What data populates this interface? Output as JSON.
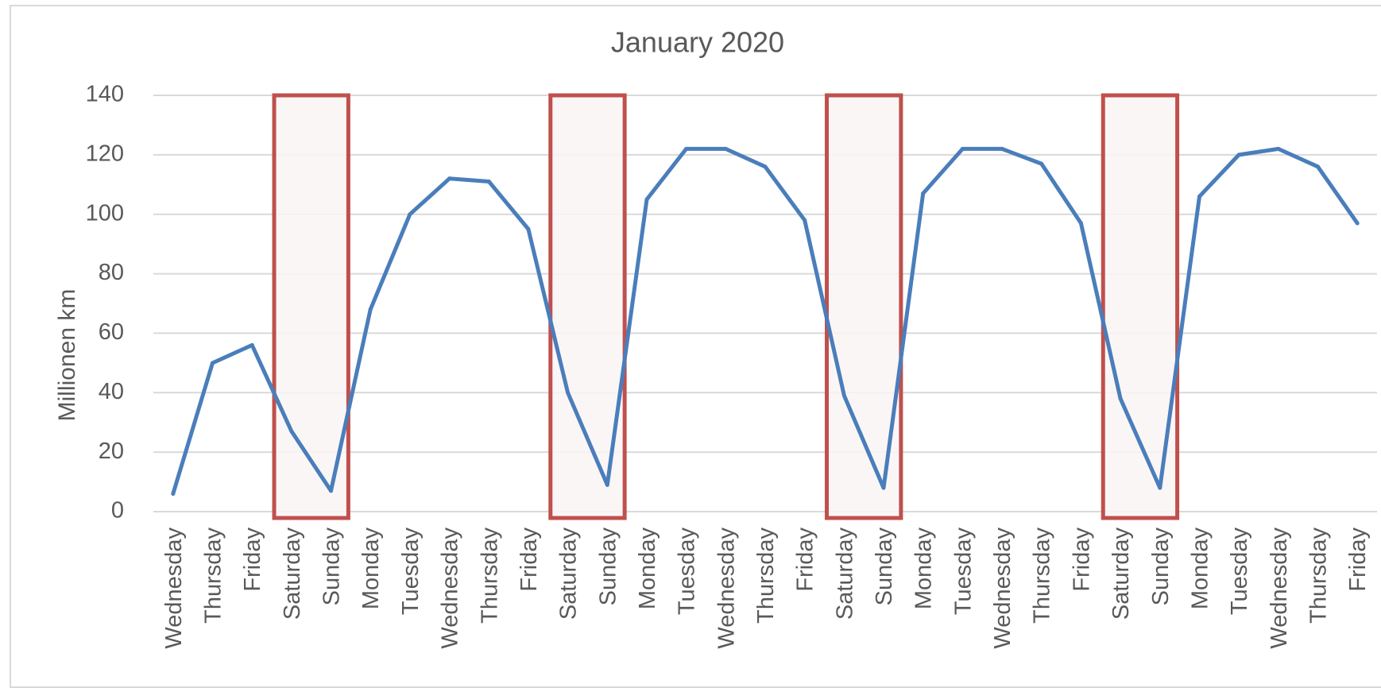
{
  "chart_data": {
    "type": "line",
    "title": "January 2020",
    "xlabel": "",
    "ylabel": "Millionen km",
    "ylim": [
      0,
      140
    ],
    "yticks": [
      0,
      20,
      40,
      60,
      80,
      100,
      120,
      140
    ],
    "grid": true,
    "categories": [
      "Wednesday",
      "Thursday",
      "Friday",
      "Saturday",
      "Sunday",
      "Monday",
      "Tuesday",
      "Wednesday",
      "Thursday",
      "Friday",
      "Saturday",
      "Sunday",
      "Monday",
      "Tuesday",
      "Wednesday",
      "Thursday",
      "Friday",
      "Saturday",
      "Sunday",
      "Monday",
      "Tuesday",
      "Wednesday",
      "Thursday",
      "Friday",
      "Saturday",
      "Sunday",
      "Monday",
      "Tuesday",
      "Wednesday",
      "Thursday",
      "Friday"
    ],
    "series": [
      {
        "values": [
          6,
          50,
          56,
          27,
          7,
          68,
          100,
          112,
          111,
          95,
          40,
          9,
          105,
          122,
          122,
          116,
          98,
          39,
          8,
          107,
          122,
          122,
          117,
          97,
          38,
          8,
          106,
          120,
          122,
          116,
          97
        ]
      }
    ],
    "highlighted_categories": [
      [
        3,
        4
      ],
      [
        10,
        11
      ],
      [
        17,
        18
      ],
      [
        24,
        25
      ]
    ]
  },
  "colors": {
    "line": "#4a7ebb",
    "highlight_border": "#c0504d",
    "highlight_fill": "#faf4f4",
    "grid": "#d9d9d9",
    "text": "#595959"
  }
}
